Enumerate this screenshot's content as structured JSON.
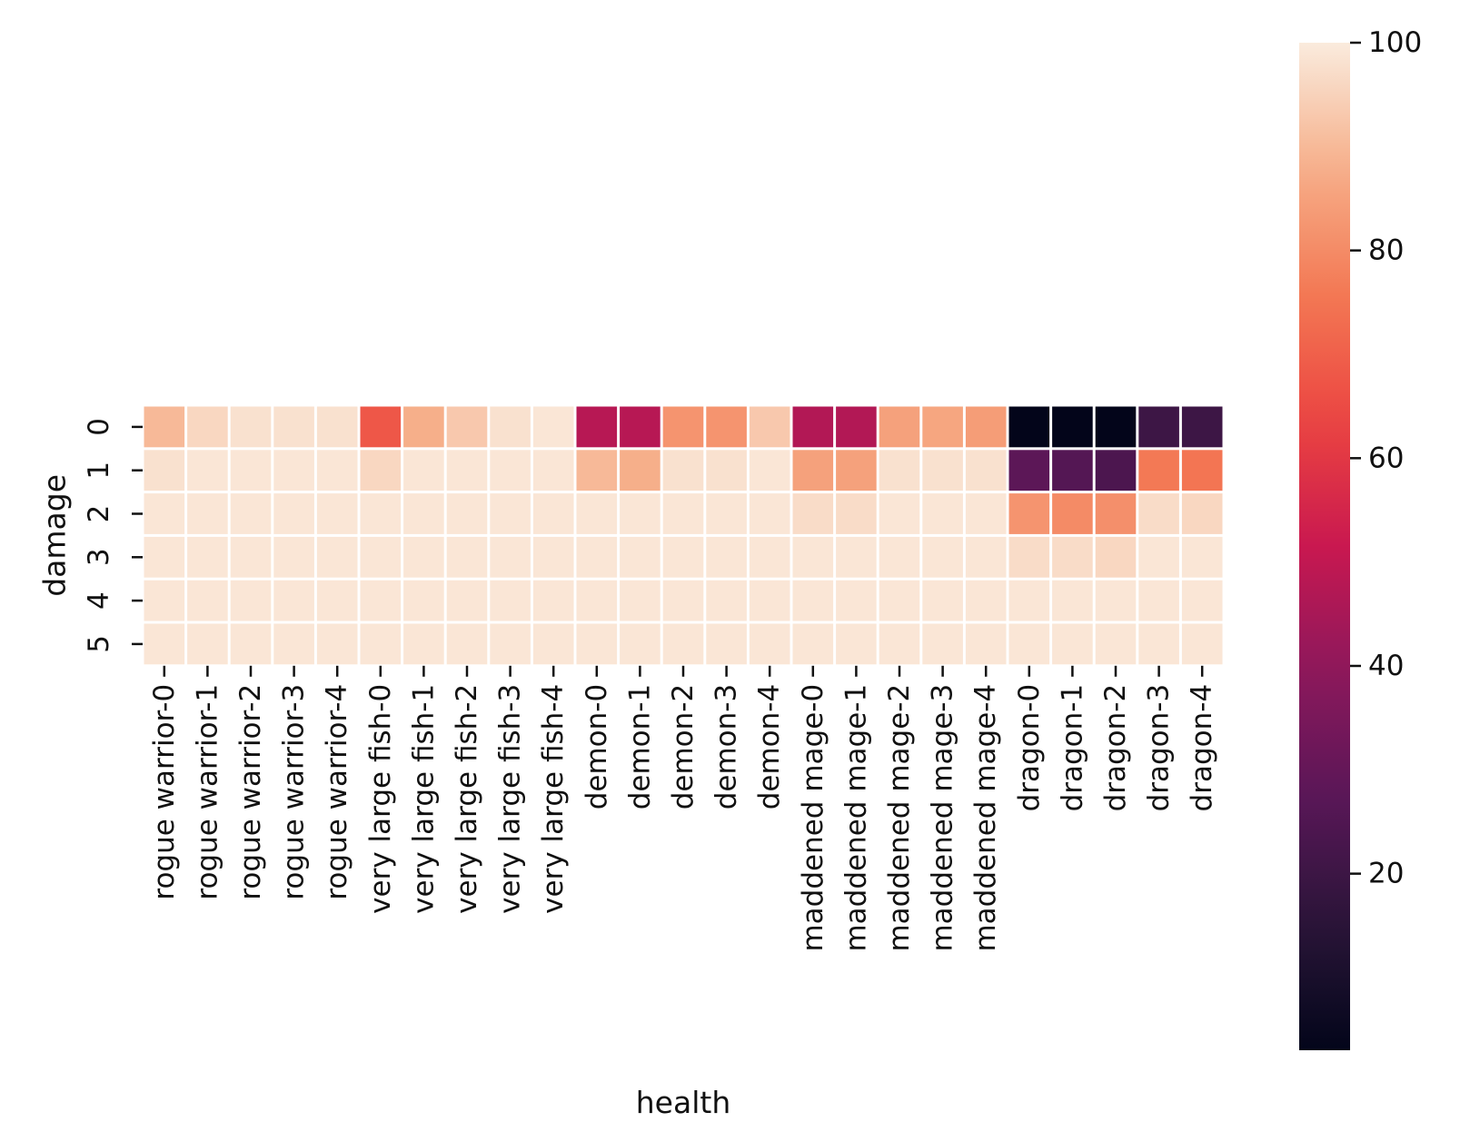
{
  "chart_data": {
    "type": "heatmap",
    "xlabel": "health",
    "ylabel": "damage",
    "columns": [
      "rogue warrior-0",
      "rogue warrior-1",
      "rogue warrior-2",
      "rogue warrior-3",
      "rogue warrior-4",
      "very large fish-0",
      "very large fish-1",
      "very large fish-2",
      "very large fish-3",
      "very large fish-4",
      "demon-0",
      "demon-1",
      "demon-2",
      "demon-3",
      "demon-4",
      "maddened mage-0",
      "maddened mage-1",
      "maddened mage-2",
      "maddened mage-3",
      "maddened mage-4",
      "dragon-0",
      "dragon-1",
      "dragon-2",
      "dragon-3",
      "dragon-4"
    ],
    "rows": [
      "0",
      "1",
      "2",
      "3",
      "4",
      "5"
    ],
    "values": [
      [
        90,
        96,
        98,
        98,
        98,
        68,
        88,
        93,
        98,
        99,
        48,
        48,
        82,
        82,
        93,
        47,
        47,
        85,
        86,
        84,
        3,
        2,
        2,
        20,
        20
      ],
      [
        98,
        99,
        99,
        99,
        99,
        96,
        99,
        99,
        99,
        99,
        90,
        88,
        98,
        98,
        99,
        85,
        85,
        98,
        98,
        98,
        28,
        26,
        24,
        76,
        75
      ],
      [
        99,
        99,
        99,
        99,
        99,
        99,
        99,
        99,
        99,
        99,
        99,
        99,
        99,
        99,
        99,
        97,
        97,
        99,
        99,
        99,
        82,
        80,
        81,
        97,
        96
      ],
      [
        99,
        99,
        99,
        99,
        99,
        99,
        99,
        99,
        99,
        99,
        99,
        99,
        99,
        99,
        99,
        99,
        99,
        99,
        99,
        99,
        97,
        97,
        96,
        99,
        99
      ],
      [
        99,
        99,
        99,
        99,
        99,
        99,
        99,
        99,
        99,
        99,
        99,
        99,
        99,
        99,
        99,
        99,
        99,
        99,
        99,
        99,
        99,
        99,
        99,
        99,
        99
      ],
      [
        99,
        99,
        99,
        99,
        99,
        99,
        99,
        99,
        99,
        99,
        99,
        99,
        99,
        99,
        99,
        99,
        99,
        99,
        99,
        99,
        99,
        99,
        99,
        99,
        99
      ]
    ],
    "colorbar": {
      "min": 3,
      "max": 100,
      "ticks": [
        20,
        40,
        60,
        80,
        100
      ],
      "colormap": "rocket"
    },
    "cell_gap_color": "#ffffff"
  }
}
